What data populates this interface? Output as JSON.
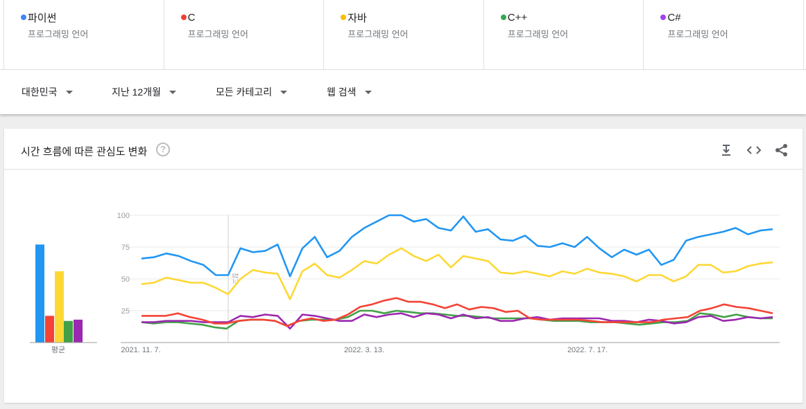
{
  "terms": [
    {
      "label": "파이썬",
      "sub": "프로그래밍 언어",
      "color": "#4285f4"
    },
    {
      "label": "C",
      "sub": "프로그래밍 언어",
      "color": "#ea4335"
    },
    {
      "label": "자바",
      "sub": "프로그래밍 언어",
      "color": "#fbbc04"
    },
    {
      "label": "C++",
      "sub": "프로그래밍 언어",
      "color": "#34a853"
    },
    {
      "label": "C#",
      "sub": "프로그래밍 언어",
      "color": "#a142f4"
    }
  ],
  "filters": {
    "region": "대한민국",
    "period": "지난 12개월",
    "category": "모든 카테고리",
    "search_type": "웹 검색"
  },
  "card": {
    "title": "시간 흐름에 따른 관심도 변화",
    "help_icon": "question-circle-icon",
    "tools": [
      "download-icon",
      "embed-code-icon",
      "share-icon"
    ]
  },
  "chart_data": {
    "type": "line",
    "x_tick_labels": [
      "2021. 11. 7.",
      "2022. 3. 13.",
      "2022. 7. 17."
    ],
    "y_ticks": [
      25,
      50,
      75,
      100
    ],
    "ylim": [
      0,
      100
    ],
    "grid": true,
    "hover_marker_label": "참고",
    "average_label": "평균",
    "series": [
      {
        "color": "#2196f3",
        "average": 77,
        "values": [
          66,
          67,
          70,
          68,
          64,
          61,
          53,
          53,
          74,
          71,
          72,
          77,
          52,
          74,
          83,
          67,
          72,
          83,
          90,
          95,
          100,
          100,
          95,
          97,
          90,
          88,
          99,
          87,
          89,
          81,
          80,
          84,
          76,
          75,
          78,
          75,
          83,
          74,
          67,
          73,
          69,
          73,
          61,
          65,
          80,
          83,
          85,
          87,
          90,
          85,
          88,
          89
        ]
      },
      {
        "color": "#f44336",
        "average": 21,
        "values": [
          21,
          21,
          21,
          23,
          20,
          18,
          15,
          15,
          17,
          18,
          18,
          17,
          13,
          17,
          19,
          17,
          18,
          22,
          28,
          30,
          33,
          35,
          32,
          32,
          30,
          27,
          30,
          26,
          28,
          27,
          24,
          25,
          19,
          18,
          18,
          18,
          18,
          17,
          16,
          16,
          16,
          16,
          16,
          18,
          19,
          20,
          25,
          27,
          30,
          28,
          27,
          25,
          23
        ]
      },
      {
        "color": "#fdd835",
        "average": 56,
        "values": [
          46,
          47,
          51,
          49,
          47,
          47,
          43,
          38,
          50,
          57,
          55,
          54,
          34,
          56,
          62,
          53,
          51,
          57,
          64,
          62,
          69,
          74,
          68,
          64,
          69,
          59,
          68,
          66,
          64,
          55,
          54,
          56,
          54,
          52,
          56,
          54,
          58,
          55,
          54,
          52,
          48,
          53,
          53,
          48,
          52,
          61,
          61,
          55,
          56,
          60,
          62,
          63
        ]
      },
      {
        "color": "#43a047",
        "average": 17,
        "values": [
          16,
          15,
          16,
          16,
          15,
          14,
          12,
          11,
          17,
          18,
          18,
          17,
          13,
          17,
          18,
          18,
          18,
          20,
          25,
          25,
          23,
          25,
          24,
          23,
          23,
          22,
          21,
          21,
          20,
          19,
          19,
          19,
          19,
          18,
          17,
          17,
          17,
          16,
          16,
          16,
          15,
          14,
          15,
          16,
          16,
          17,
          23,
          22,
          20,
          22,
          20,
          19,
          19
        ]
      },
      {
        "color": "#9c27b0",
        "average": 18,
        "values": [
          16,
          16,
          17,
          17,
          17,
          16,
          16,
          16,
          21,
          20,
          22,
          21,
          11,
          22,
          21,
          19,
          17,
          17,
          22,
          20,
          22,
          23,
          20,
          23,
          22,
          19,
          22,
          19,
          20,
          17,
          17,
          19,
          20,
          18,
          19,
          19,
          19,
          19,
          17,
          17,
          16,
          18,
          17,
          15,
          16,
          20,
          21,
          17,
          18,
          20,
          19,
          20
        ]
      }
    ]
  }
}
